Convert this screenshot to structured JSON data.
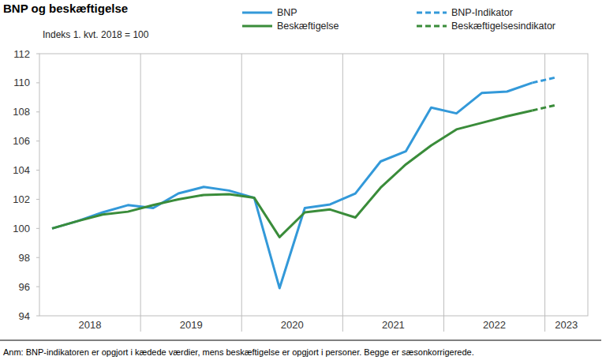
{
  "chart_data": {
    "type": "line",
    "title": "BNP og beskæftigelse",
    "subtitle": "Indeks 1. kvt. 2018 = 100",
    "note": "Anm: BNP-indikatoren er opgjort i kædede værdier, mens beskæftigelse er opgjort i personer. Begge er sæsonkorrigerede.",
    "categories": [
      "2018",
      null,
      null,
      null,
      "2019",
      null,
      null,
      null,
      "2020",
      null,
      null,
      null,
      "2021",
      null,
      null,
      null,
      "2022",
      null,
      null,
      null,
      "2023"
    ],
    "series": [
      {
        "name": "BNP",
        "color": "#3399d9",
        "line_style": "solid",
        "values": [
          100.0,
          100.5,
          101.1,
          101.6,
          101.4,
          102.4,
          102.85,
          102.6,
          102.1,
          95.9,
          101.4,
          101.65,
          102.4,
          104.6,
          105.3,
          108.3,
          107.9,
          109.3,
          109.4,
          110.0,
          null
        ]
      },
      {
        "name": "Beskæftigelse",
        "color": "#3a8c3a",
        "line_style": "solid",
        "values": [
          100.0,
          100.5,
          100.95,
          101.15,
          101.6,
          102.0,
          102.3,
          102.35,
          102.1,
          99.4,
          101.1,
          101.3,
          100.75,
          102.8,
          104.4,
          105.7,
          106.8,
          107.25,
          107.7,
          108.1,
          null
        ]
      },
      {
        "name": "BNP-Indikator",
        "color": "#3399d9",
        "line_style": "dashed",
        "values": [
          null,
          null,
          null,
          null,
          null,
          null,
          null,
          null,
          null,
          null,
          null,
          null,
          null,
          null,
          null,
          null,
          null,
          null,
          null,
          110.0,
          110.4
        ]
      },
      {
        "name": "Beskæftigelsesindikator",
        "color": "#3a8c3a",
        "line_style": "dashed",
        "values": [
          null,
          null,
          null,
          null,
          null,
          null,
          null,
          null,
          null,
          null,
          null,
          null,
          null,
          null,
          null,
          null,
          null,
          null,
          null,
          108.1,
          108.5
        ]
      }
    ],
    "ylim": [
      94,
      112
    ],
    "yticks": [
      94,
      96,
      98,
      100,
      102,
      104,
      106,
      108,
      110,
      112
    ],
    "grid": true,
    "legend": "top-right"
  }
}
